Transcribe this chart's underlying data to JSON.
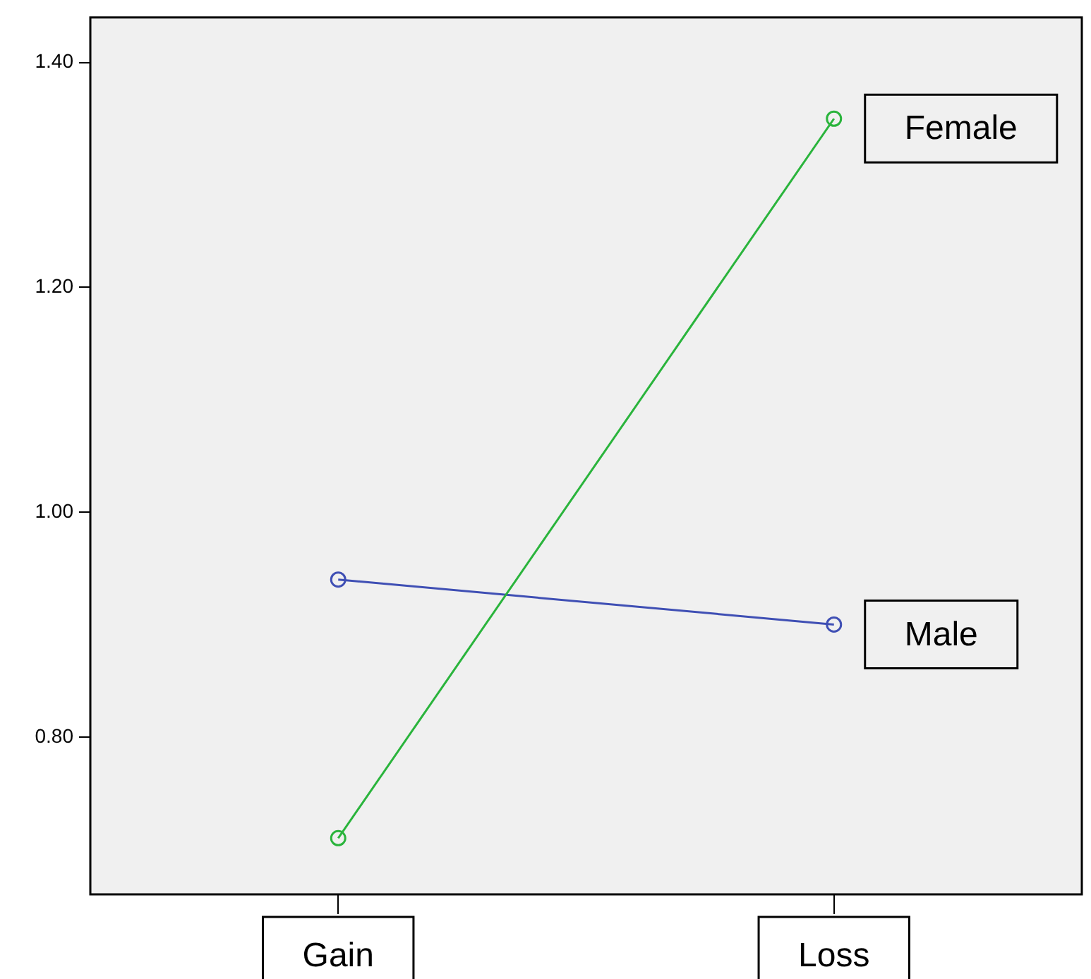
{
  "chart_data": {
    "type": "line",
    "categories": [
      "Gain",
      "Loss"
    ],
    "series": [
      {
        "name": "Female",
        "color": "#2ab43c",
        "values": [
          0.71,
          1.35
        ]
      },
      {
        "name": "Male",
        "color": "#3f4fb4",
        "values": [
          0.94,
          0.9
        ]
      }
    ],
    "ylim": [
      0.66,
      1.44
    ],
    "yticks": [
      {
        "value": 0.8,
        "label": "0.80"
      },
      {
        "value": 1.0,
        "label": "1.00"
      },
      {
        "value": 1.2,
        "label": "1.20"
      },
      {
        "value": 1.4,
        "label": "1.40"
      }
    ],
    "grid": false,
    "legend": false,
    "marker": "circle",
    "line_style": "solid"
  }
}
